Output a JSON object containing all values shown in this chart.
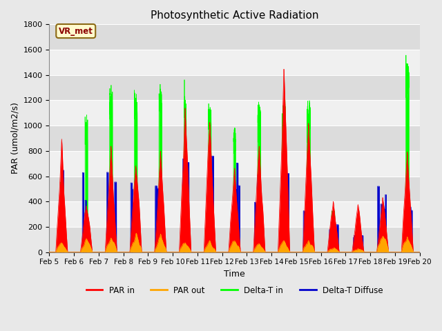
{
  "title": "Photosynthetic Active Radiation",
  "xlabel": "Time",
  "ylabel": "PAR (umol/m2/s)",
  "ylim": [
    0,
    1800
  ],
  "yticks": [
    0,
    200,
    400,
    600,
    800,
    1000,
    1200,
    1400,
    1600,
    1800
  ],
  "annotation_text": "VR_met",
  "legend_entries": [
    "PAR in",
    "PAR out",
    "Delta-T in",
    "Delta-T Diffuse"
  ],
  "colors": {
    "PAR_in": "#FF0000",
    "PAR_out": "#FFA500",
    "Delta_T_in": "#00FF00",
    "Delta_T_Diffuse": "#0000CC"
  },
  "background_color": "#E8E8E8",
  "plot_bg_dark": "#DCDCDC",
  "plot_bg_light": "#F0F0F0",
  "gridline_color": "#FFFFFF",
  "n_days": 15,
  "start_day": 5,
  "par_in_peaks": [
    850,
    420,
    880,
    800,
    800,
    1080,
    1150,
    780,
    900,
    1295,
    890,
    460,
    350,
    400,
    900
  ],
  "par_out_peaks": [
    80,
    80,
    90,
    120,
    110,
    100,
    80,
    80,
    80,
    80,
    100,
    30,
    30,
    120,
    100
  ],
  "delta_t_in_peaks": [
    600,
    1120,
    1340,
    1350,
    1360,
    1340,
    1220,
    1040,
    1250,
    1270,
    1220,
    350,
    130,
    280,
    1590
  ],
  "delta_t_diff_peaks": [
    650,
    650,
    680,
    680,
    525,
    785,
    880,
    730,
    650,
    650,
    530,
    290,
    170,
    545,
    500
  ],
  "pts_per_day": 480
}
